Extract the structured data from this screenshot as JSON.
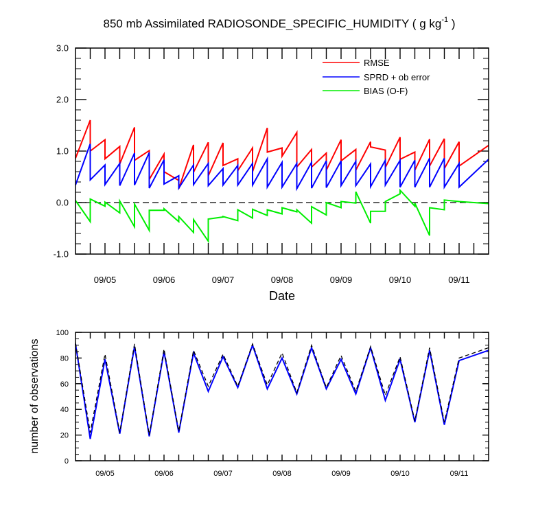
{
  "chart_data": [
    {
      "type": "line",
      "title": "850 mb Assimilated RADIOSONDE_SPECIFIC_HUMIDITY ( g kg",
      "title_sup": "-1",
      "title_tail": " )",
      "xlabel": "Date",
      "ylabel": "",
      "xlim": [
        0,
        7
      ],
      "ylim": [
        -1.0,
        3.0
      ],
      "xticks": [
        {
          "x": 0.5,
          "label": "09/05"
        },
        {
          "x": 1.5,
          "label": "09/06"
        },
        {
          "x": 2.5,
          "label": "09/07"
        },
        {
          "x": 3.5,
          "label": "09/08"
        },
        {
          "x": 4.5,
          "label": "09/09"
        },
        {
          "x": 5.5,
          "label": "09/10"
        },
        {
          "x": 6.5,
          "label": "09/11"
        }
      ],
      "yticks": [
        {
          "y": -1.0,
          "label": "-1.0"
        },
        {
          "y": 0.0,
          "label": "0.0"
        },
        {
          "y": 1.0,
          "label": "1.0"
        },
        {
          "y": 2.0,
          "label": "2.0"
        },
        {
          "y": 3.0,
          "label": "3.0"
        }
      ],
      "minor_xticks": [
        0.25,
        0.5,
        0.75,
        1.0,
        1.25,
        1.5,
        1.75,
        2.0,
        2.25,
        2.5,
        2.75,
        3.0,
        3.25,
        3.5,
        3.75,
        4.0,
        4.25,
        4.5,
        4.75,
        5.0,
        5.25,
        5.5,
        5.75,
        6.0,
        6.25,
        6.5,
        6.75
      ],
      "zero_line": 0.0,
      "legend_position": "top-right",
      "series": [
        {
          "name": "RMSE",
          "color": "#ff0000",
          "x": [
            0.0,
            0.25,
            0.25,
            0.5,
            0.5,
            0.75,
            0.75,
            1.0,
            1.0,
            1.25,
            1.25,
            1.5,
            1.5,
            1.75,
            1.75,
            2.0,
            2.0,
            2.25,
            2.25,
            2.5,
            2.5,
            2.75,
            2.75,
            3.0,
            3.0,
            3.25,
            3.25,
            3.5,
            3.5,
            3.75,
            3.75,
            4.0,
            4.0,
            4.25,
            4.25,
            4.5,
            4.5,
            4.75,
            4.75,
            5.0,
            5.0,
            5.25,
            5.25,
            5.5,
            5.5,
            5.75,
            5.75,
            6.0,
            6.0,
            6.25,
            6.25,
            6.5,
            6.5,
            7.0
          ],
          "y": [
            0.86,
            1.6,
            1.0,
            1.22,
            0.85,
            1.09,
            0.75,
            1.46,
            0.82,
            1.01,
            0.45,
            0.94,
            0.6,
            0.43,
            0.27,
            1.12,
            0.59,
            1.17,
            0.52,
            1.16,
            0.72,
            0.85,
            0.62,
            1.06,
            0.6,
            1.45,
            0.98,
            1.06,
            0.9,
            1.36,
            0.69,
            1.03,
            0.69,
            0.96,
            0.63,
            1.22,
            0.81,
            1.03,
            0.63,
            1.18,
            1.08,
            1.02,
            0.68,
            1.27,
            0.84,
            0.98,
            0.63,
            1.23,
            0.71,
            1.24,
            0.66,
            1.18,
            0.71,
            1.11
          ]
        },
        {
          "name": "SPRD + ob error",
          "color": "#0000ff",
          "x": [
            0.0,
            0.25,
            0.25,
            0.5,
            0.5,
            0.75,
            0.75,
            1.0,
            1.0,
            1.25,
            1.25,
            1.5,
            1.5,
            1.75,
            1.75,
            2.0,
            2.0,
            2.25,
            2.25,
            2.5,
            2.5,
            2.75,
            2.75,
            3.0,
            3.0,
            3.25,
            3.25,
            3.5,
            3.5,
            3.75,
            3.75,
            4.0,
            4.0,
            4.25,
            4.25,
            4.5,
            4.5,
            4.75,
            4.75,
            5.0,
            5.0,
            5.25,
            5.25,
            5.5,
            5.5,
            5.75,
            5.75,
            6.0,
            6.0,
            6.25,
            6.25,
            6.5,
            6.5,
            7.0
          ],
          "y": [
            0.34,
            1.14,
            0.44,
            0.73,
            0.35,
            0.76,
            0.33,
            0.96,
            0.34,
            0.97,
            0.28,
            0.83,
            0.36,
            0.52,
            0.28,
            0.73,
            0.35,
            0.76,
            0.33,
            0.66,
            0.34,
            0.72,
            0.34,
            0.76,
            0.34,
            0.85,
            0.3,
            0.78,
            0.3,
            0.76,
            0.27,
            0.78,
            0.28,
            0.81,
            0.29,
            0.81,
            0.33,
            0.8,
            0.33,
            0.75,
            0.31,
            0.82,
            0.34,
            0.82,
            0.3,
            0.82,
            0.3,
            0.86,
            0.3,
            0.86,
            0.3,
            0.76,
            0.3,
            0.84
          ]
        },
        {
          "name": "BIAS (O-F)",
          "color": "#00ee00",
          "x": [
            0.0,
            0.25,
            0.25,
            0.5,
            0.5,
            0.75,
            0.75,
            1.0,
            1.0,
            1.25,
            1.25,
            1.5,
            1.5,
            1.75,
            1.75,
            2.0,
            2.0,
            2.25,
            2.25,
            2.5,
            2.5,
            2.75,
            2.75,
            3.0,
            3.0,
            3.25,
            3.25,
            3.5,
            3.5,
            3.75,
            3.75,
            4.0,
            4.0,
            4.25,
            4.25,
            4.5,
            4.5,
            4.75,
            4.75,
            5.0,
            5.0,
            5.25,
            5.25,
            5.5,
            5.5,
            5.75,
            5.75,
            6.0,
            6.0,
            6.25,
            6.25,
            6.5,
            6.5,
            7.0
          ],
          "y": [
            0.04,
            -0.37,
            0.07,
            -0.07,
            0.01,
            -0.2,
            0.03,
            -0.47,
            -0.03,
            -0.54,
            -0.15,
            -0.15,
            -0.12,
            -0.37,
            -0.27,
            -0.58,
            -0.33,
            -0.75,
            -0.32,
            -0.28,
            -0.27,
            -0.35,
            -0.14,
            -0.3,
            -0.13,
            -0.25,
            -0.14,
            -0.22,
            -0.1,
            -0.18,
            -0.14,
            -0.4,
            -0.08,
            -0.24,
            0.0,
            -0.1,
            0.02,
            -0.01,
            0.21,
            -0.4,
            -0.17,
            -0.17,
            0.02,
            0.17,
            0.24,
            -0.07,
            -0.01,
            -0.64,
            -0.1,
            -0.14,
            0.05,
            0.02,
            0.02,
            -0.02
          ]
        }
      ]
    },
    {
      "type": "line",
      "title": "",
      "xlabel": "",
      "ylabel": "number of observations",
      "xlim": [
        0,
        7
      ],
      "ylim": [
        0,
        100
      ],
      "xticks": [
        {
          "x": 0.5,
          "label": "09/05"
        },
        {
          "x": 1.5,
          "label": "09/06"
        },
        {
          "x": 2.5,
          "label": "09/07"
        },
        {
          "x": 3.5,
          "label": "09/08"
        },
        {
          "x": 4.5,
          "label": "09/09"
        },
        {
          "x": 5.5,
          "label": "09/10"
        },
        {
          "x": 6.5,
          "label": "09/11"
        }
      ],
      "yticks": [
        {
          "y": 0,
          "label": "0"
        },
        {
          "y": 20,
          "label": "20"
        },
        {
          "y": 40,
          "label": "40"
        },
        {
          "y": 60,
          "label": "60"
        },
        {
          "y": 80,
          "label": "80"
        },
        {
          "y": 100,
          "label": "100"
        }
      ],
      "minor_xticks": [
        0.25,
        0.5,
        0.75,
        1.0,
        1.25,
        1.5,
        1.75,
        2.0,
        2.25,
        2.5,
        2.75,
        3.0,
        3.25,
        3.5,
        3.75,
        4.0,
        4.25,
        4.5,
        4.75,
        5.0,
        5.25,
        5.5,
        5.75,
        6.0,
        6.25,
        6.5,
        6.75
      ],
      "series": [
        {
          "color": "#0000ff",
          "dash": "solid",
          "x": [
            0.0,
            0.25,
            0.5,
            0.75,
            1.0,
            1.25,
            1.5,
            1.75,
            2.0,
            2.25,
            2.5,
            2.75,
            3.0,
            3.25,
            3.5,
            3.75,
            4.0,
            4.25,
            4.5,
            4.75,
            5.0,
            5.25,
            5.5,
            5.75,
            6.0,
            6.25,
            6.5,
            7.0
          ],
          "y": [
            91,
            17,
            79,
            21,
            89,
            19,
            85,
            22,
            84,
            54,
            81,
            57,
            90,
            56,
            80,
            52,
            88,
            56,
            79,
            52,
            88,
            47,
            79,
            30,
            86,
            28,
            78,
            86
          ]
        },
        {
          "color": "#000000",
          "dash": "dashed",
          "x": [
            0.0,
            0.25,
            0.5,
            0.75,
            1.0,
            1.25,
            1.5,
            1.75,
            2.0,
            2.25,
            2.5,
            2.75,
            3.0,
            3.25,
            3.5,
            3.75,
            4.0,
            4.25,
            4.5,
            4.75,
            5.0,
            5.25,
            5.5,
            5.75,
            6.0,
            6.25,
            6.5,
            7.0
          ],
          "y": [
            92,
            22,
            83,
            22,
            91,
            20,
            87,
            23,
            86,
            58,
            83,
            58,
            91,
            59,
            84,
            53,
            90,
            57,
            82,
            54,
            89,
            51,
            81,
            31,
            88,
            30,
            80,
            88
          ]
        }
      ]
    }
  ]
}
